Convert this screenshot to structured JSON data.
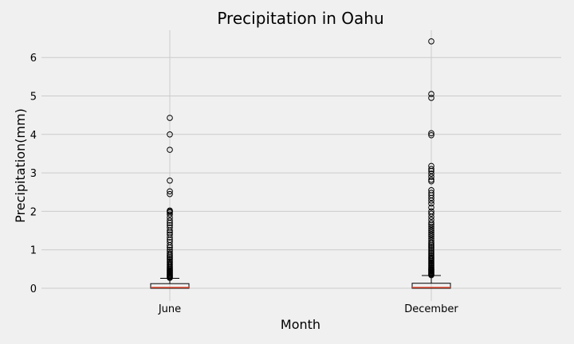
{
  "chart_data": {
    "type": "box",
    "title": "Precipitation in Oahu",
    "xlabel": "Month",
    "ylabel": "Precipitation(mm)",
    "ylim": [
      -0.35,
      6.75
    ],
    "yticks": [
      0,
      1,
      2,
      3,
      4,
      5,
      6
    ],
    "grid": true,
    "categories": [
      "June",
      "December"
    ],
    "boxes": [
      {
        "category": "June",
        "min": 0.0,
        "q1": 0.0,
        "median": 0.02,
        "q3": 0.12,
        "whisker_high": 0.26,
        "outliers": [
          0.27,
          0.29,
          0.31,
          0.33,
          0.35,
          0.37,
          0.39,
          0.41,
          0.43,
          0.45,
          0.47,
          0.5,
          0.53,
          0.56,
          0.6,
          0.63,
          0.67,
          0.7,
          0.74,
          0.78,
          0.82,
          0.86,
          0.9,
          0.95,
          1.0,
          1.06,
          1.12,
          1.2,
          1.26,
          1.32,
          1.4,
          1.45,
          1.5,
          1.58,
          1.64,
          1.7,
          1.76,
          1.84,
          1.92,
          1.97,
          2.0,
          2.02,
          2.45,
          2.52,
          2.8,
          3.6,
          4.0,
          4.43
        ]
      },
      {
        "category": "December",
        "min": 0.0,
        "q1": 0.0,
        "median": 0.02,
        "q3": 0.13,
        "whisker_high": 0.33,
        "outliers": [
          0.34,
          0.36,
          0.38,
          0.4,
          0.42,
          0.44,
          0.46,
          0.48,
          0.5,
          0.53,
          0.56,
          0.59,
          0.62,
          0.65,
          0.68,
          0.71,
          0.74,
          0.77,
          0.8,
          0.84,
          0.88,
          0.92,
          0.96,
          1.0,
          1.04,
          1.08,
          1.12,
          1.16,
          1.2,
          1.25,
          1.3,
          1.35,
          1.4,
          1.45,
          1.5,
          1.55,
          1.6,
          1.65,
          1.7,
          1.78,
          1.86,
          1.94,
          2.0,
          2.1,
          2.2,
          2.28,
          2.35,
          2.42,
          2.48,
          2.55,
          2.78,
          2.82,
          2.9,
          2.98,
          3.05,
          3.1,
          3.18,
          3.98,
          4.03,
          4.95,
          5.05,
          6.42
        ]
      }
    ]
  },
  "colors": {
    "background": "#f0f0f0",
    "grid": "#cbcbcb",
    "box_edge": "#000000",
    "median": "#e24a33",
    "outlier_edge": "#000000"
  }
}
